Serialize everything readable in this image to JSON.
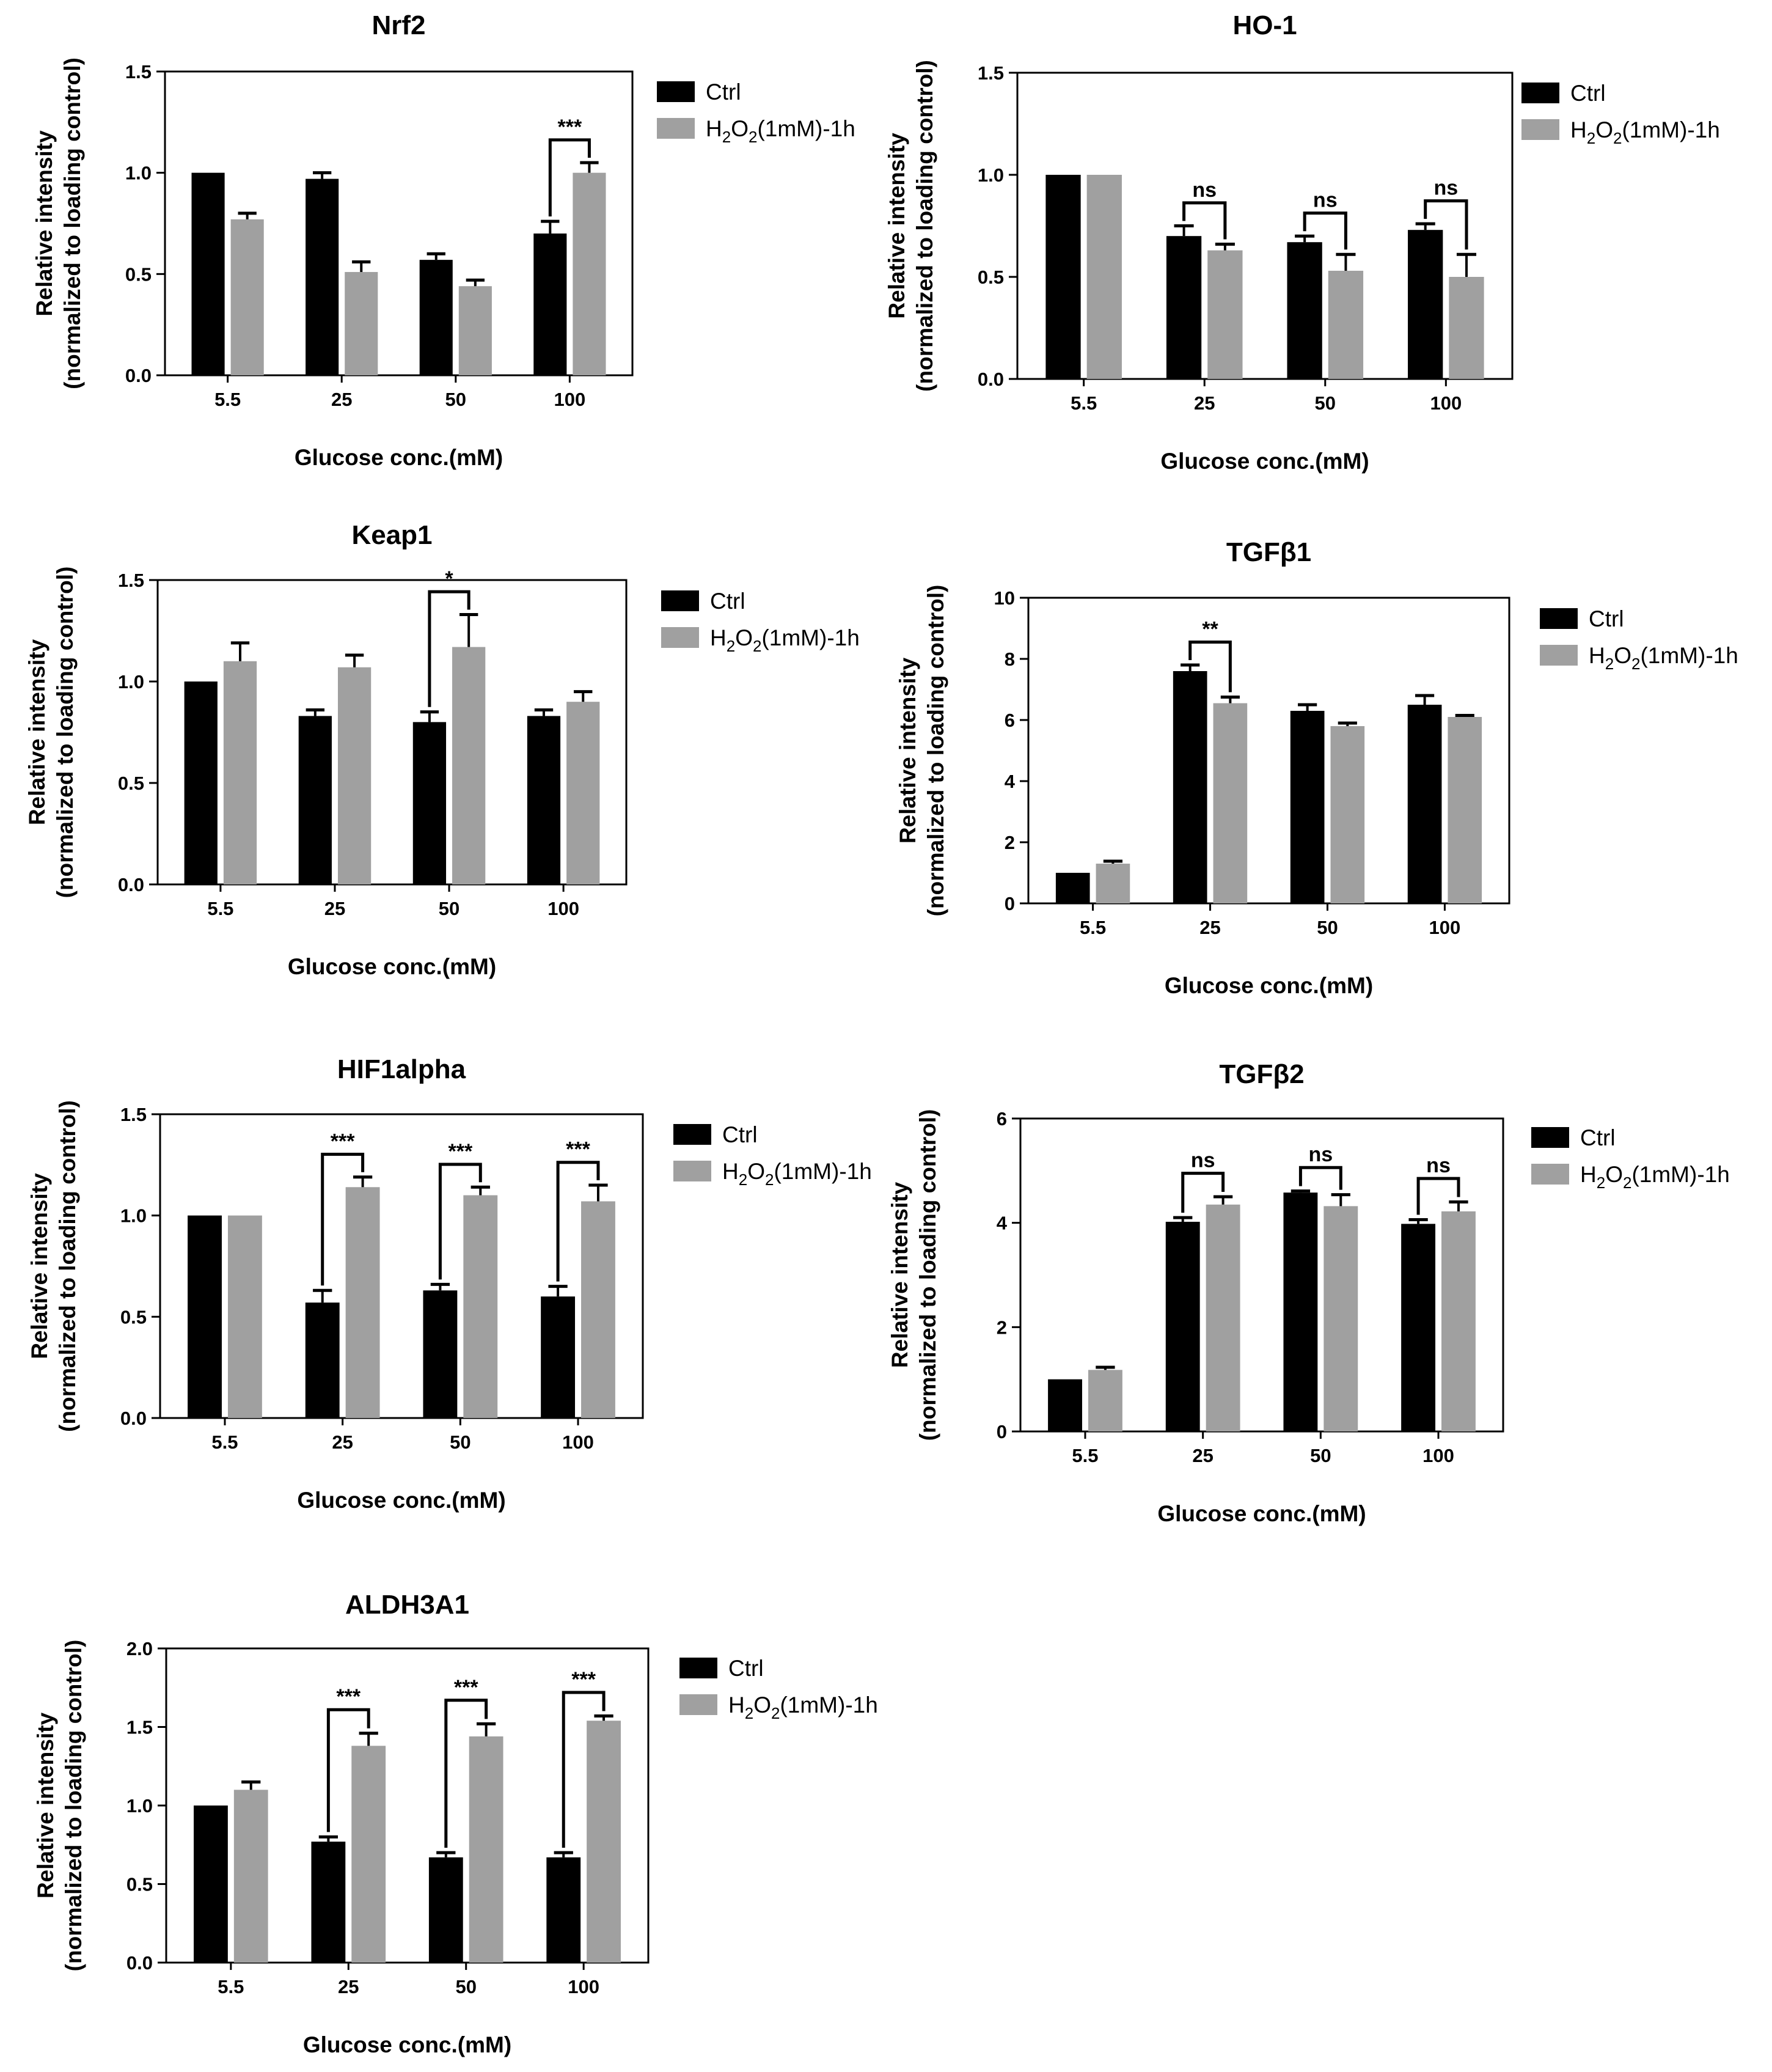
{
  "figure": {
    "legend": {
      "ctrl": "Ctrl",
      "h2o2": "H2O2(1mM)-1h",
      "h2o2_parts": {
        "h": "H",
        "sub1": "2",
        "o": "O",
        "sub2": "2",
        "rest": "(1mM)-1h"
      }
    },
    "colors": {
      "ctrl": "#000000",
      "h2o2": "#a0a0a0"
    }
  },
  "chart_data": [
    {
      "type": "bar",
      "title": "Nrf2",
      "xlabel": "Glucose conc.(mM)",
      "ylabel": [
        "Relative intensity",
        "(normalized to loading control)"
      ],
      "categories": [
        "5.5",
        "25",
        "50",
        "100"
      ],
      "ylim": [
        0,
        1.5
      ],
      "yticks": [
        "0.0",
        "0.5",
        "1.0",
        "1.5"
      ],
      "series": [
        {
          "name": "Ctrl",
          "values": [
            1.0,
            0.97,
            0.57,
            0.7
          ],
          "errors": [
            0,
            0.03,
            0.03,
            0.06
          ]
        },
        {
          "name": "H2O2(1mM)-1h",
          "values": [
            0.77,
            0.51,
            0.44,
            1.0
          ],
          "errors": [
            0.03,
            0.05,
            0.03,
            0.05
          ]
        }
      ],
      "annotations": [
        {
          "category": "100",
          "label": "***"
        }
      ]
    },
    {
      "type": "bar",
      "title": "HO-1",
      "xlabel": "Glucose conc.(mM)",
      "ylabel": [
        "Relative intensity",
        "(normalized to loading control)"
      ],
      "categories": [
        "5.5",
        "25",
        "50",
        "100"
      ],
      "ylim": [
        0,
        1.5
      ],
      "yticks": [
        "0.0",
        "0.5",
        "1.0",
        "1.5"
      ],
      "series": [
        {
          "name": "Ctrl",
          "values": [
            1.0,
            0.7,
            0.67,
            0.73
          ],
          "errors": [
            0,
            0.05,
            0.03,
            0.03
          ]
        },
        {
          "name": "H2O2(1mM)-1h",
          "values": [
            1.0,
            0.63,
            0.53,
            0.5
          ],
          "errors": [
            0,
            0.03,
            0.08,
            0.11
          ]
        }
      ],
      "annotations": [
        {
          "category": "25",
          "label": "ns"
        },
        {
          "category": "50",
          "label": "ns"
        },
        {
          "category": "100",
          "label": "ns"
        }
      ]
    },
    {
      "type": "bar",
      "title": "Keap1",
      "xlabel": "Glucose conc.(mM)",
      "ylabel": [
        "Relative intensity",
        "(normalized to loading control)"
      ],
      "categories": [
        "5.5",
        "25",
        "50",
        "100"
      ],
      "ylim": [
        0,
        1.5
      ],
      "yticks": [
        "0.0",
        "0.5",
        "1.0",
        "1.5"
      ],
      "series": [
        {
          "name": "Ctrl",
          "values": [
            1.0,
            0.83,
            0.8,
            0.83
          ],
          "errors": [
            0,
            0.03,
            0.05,
            0.03
          ]
        },
        {
          "name": "H2O2(1mM)-1h",
          "values": [
            1.1,
            1.07,
            1.17,
            0.9
          ],
          "errors": [
            0.09,
            0.06,
            0.16,
            0.05
          ]
        }
      ],
      "annotations": [
        {
          "category": "50",
          "label": "*"
        }
      ]
    },
    {
      "type": "bar",
      "title": "TGFβ1",
      "xlabel": "Glucose conc.(mM)",
      "ylabel": [
        "Relative intensity",
        "(normalized to loading control)"
      ],
      "categories": [
        "5.5",
        "25",
        "50",
        "100"
      ],
      "ylim": [
        0,
        10
      ],
      "yticks": [
        "0",
        "2",
        "4",
        "6",
        "8",
        "10"
      ],
      "series": [
        {
          "name": "Ctrl",
          "values": [
            1.0,
            7.6,
            6.3,
            6.5
          ],
          "errors": [
            0,
            0.2,
            0.2,
            0.3
          ]
        },
        {
          "name": "H2O2(1mM)-1h",
          "values": [
            1.3,
            6.55,
            5.8,
            6.1
          ],
          "errors": [
            0.08,
            0.2,
            0.1,
            0.05
          ]
        }
      ],
      "annotations": [
        {
          "category": "25",
          "label": "**"
        }
      ]
    },
    {
      "type": "bar",
      "title": "HIF1alpha",
      "xlabel": "Glucose conc.(mM)",
      "ylabel": [
        "Relative intensity",
        "(normalized to loading control)"
      ],
      "categories": [
        "5.5",
        "25",
        "50",
        "100"
      ],
      "ylim": [
        0,
        1.5
      ],
      "yticks": [
        "0.0",
        "0.5",
        "1.0",
        "1.5"
      ],
      "series": [
        {
          "name": "Ctrl",
          "values": [
            1.0,
            0.57,
            0.63,
            0.6
          ],
          "errors": [
            0,
            0.06,
            0.03,
            0.05
          ]
        },
        {
          "name": "H2O2(1mM)-1h",
          "values": [
            1.0,
            1.14,
            1.1,
            1.07
          ],
          "errors": [
            0,
            0.05,
            0.04,
            0.08
          ]
        }
      ],
      "annotations": [
        {
          "category": "25",
          "label": "***"
        },
        {
          "category": "50",
          "label": "***"
        },
        {
          "category": "100",
          "label": "***"
        }
      ]
    },
    {
      "type": "bar",
      "title": "TGFβ2",
      "xlabel": "Glucose conc.(mM)",
      "ylabel": [
        "Relative intensity",
        "(normalized to loading control)"
      ],
      "categories": [
        "5.5",
        "25",
        "50",
        "100"
      ],
      "ylim": [
        0,
        6
      ],
      "yticks": [
        "0",
        "2",
        "4",
        "6"
      ],
      "series": [
        {
          "name": "Ctrl",
          "values": [
            1.0,
            4.02,
            4.58,
            3.98
          ],
          "errors": [
            0,
            0.08,
            0.03,
            0.08
          ]
        },
        {
          "name": "H2O2(1mM)-1h",
          "values": [
            1.18,
            4.35,
            4.32,
            4.22
          ],
          "errors": [
            0.05,
            0.15,
            0.22,
            0.18
          ]
        }
      ],
      "annotations": [
        {
          "category": "25",
          "label": "ns"
        },
        {
          "category": "50",
          "label": "ns"
        },
        {
          "category": "100",
          "label": "ns"
        }
      ]
    },
    {
      "type": "bar",
      "title": "ALDH3A1",
      "xlabel": "Glucose conc.(mM)",
      "ylabel": [
        "Relative intensity",
        "(normalized to loading control)"
      ],
      "categories": [
        "5.5",
        "25",
        "50",
        "100"
      ],
      "ylim": [
        0,
        2.0
      ],
      "yticks": [
        "0.0",
        "0.5",
        "1.0",
        "1.5",
        "2.0"
      ],
      "series": [
        {
          "name": "Ctrl",
          "values": [
            1.0,
            0.77,
            0.67,
            0.67
          ],
          "errors": [
            0,
            0.03,
            0.03,
            0.03
          ]
        },
        {
          "name": "H2O2(1mM)-1h",
          "values": [
            1.1,
            1.38,
            1.44,
            1.54
          ],
          "errors": [
            0.05,
            0.08,
            0.08,
            0.03
          ]
        }
      ],
      "annotations": [
        {
          "category": "25",
          "label": "***"
        },
        {
          "category": "50",
          "label": "***"
        },
        {
          "category": "100",
          "label": "***"
        }
      ]
    }
  ]
}
